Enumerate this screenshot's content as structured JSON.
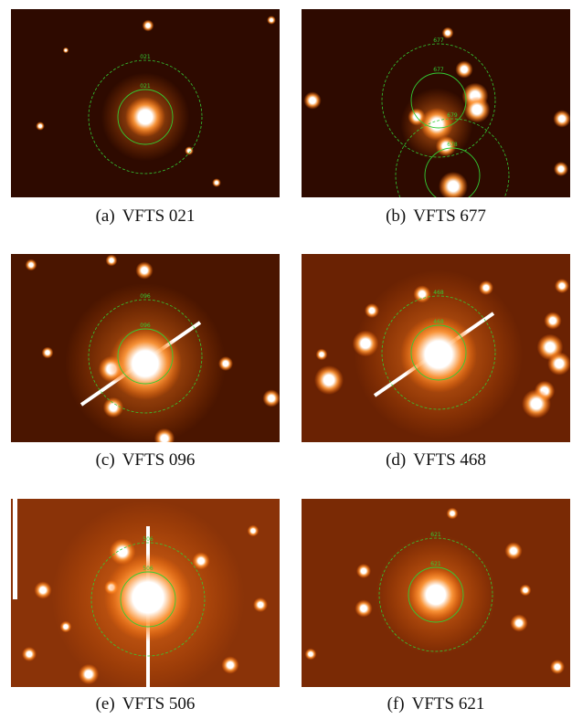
{
  "panels": [
    {
      "tag": "(a)",
      "name": "VFTS 021",
      "labels": [
        "021",
        "021"
      ]
    },
    {
      "tag": "(b)",
      "name": "VFTS 677",
      "labels": [
        "677",
        "677",
        "679",
        "678"
      ]
    },
    {
      "tag": "(c)",
      "name": "VFTS 096",
      "labels": [
        "096",
        "096"
      ]
    },
    {
      "tag": "(d)",
      "name": "VFTS 468",
      "labels": [
        "468",
        "468"
      ]
    },
    {
      "tag": "(e)",
      "name": "VFTS 506",
      "labels": [
        "506",
        "506"
      ]
    },
    {
      "tag": "(f)",
      "name": "VFTS 621",
      "labels": [
        "621",
        "621"
      ]
    }
  ]
}
